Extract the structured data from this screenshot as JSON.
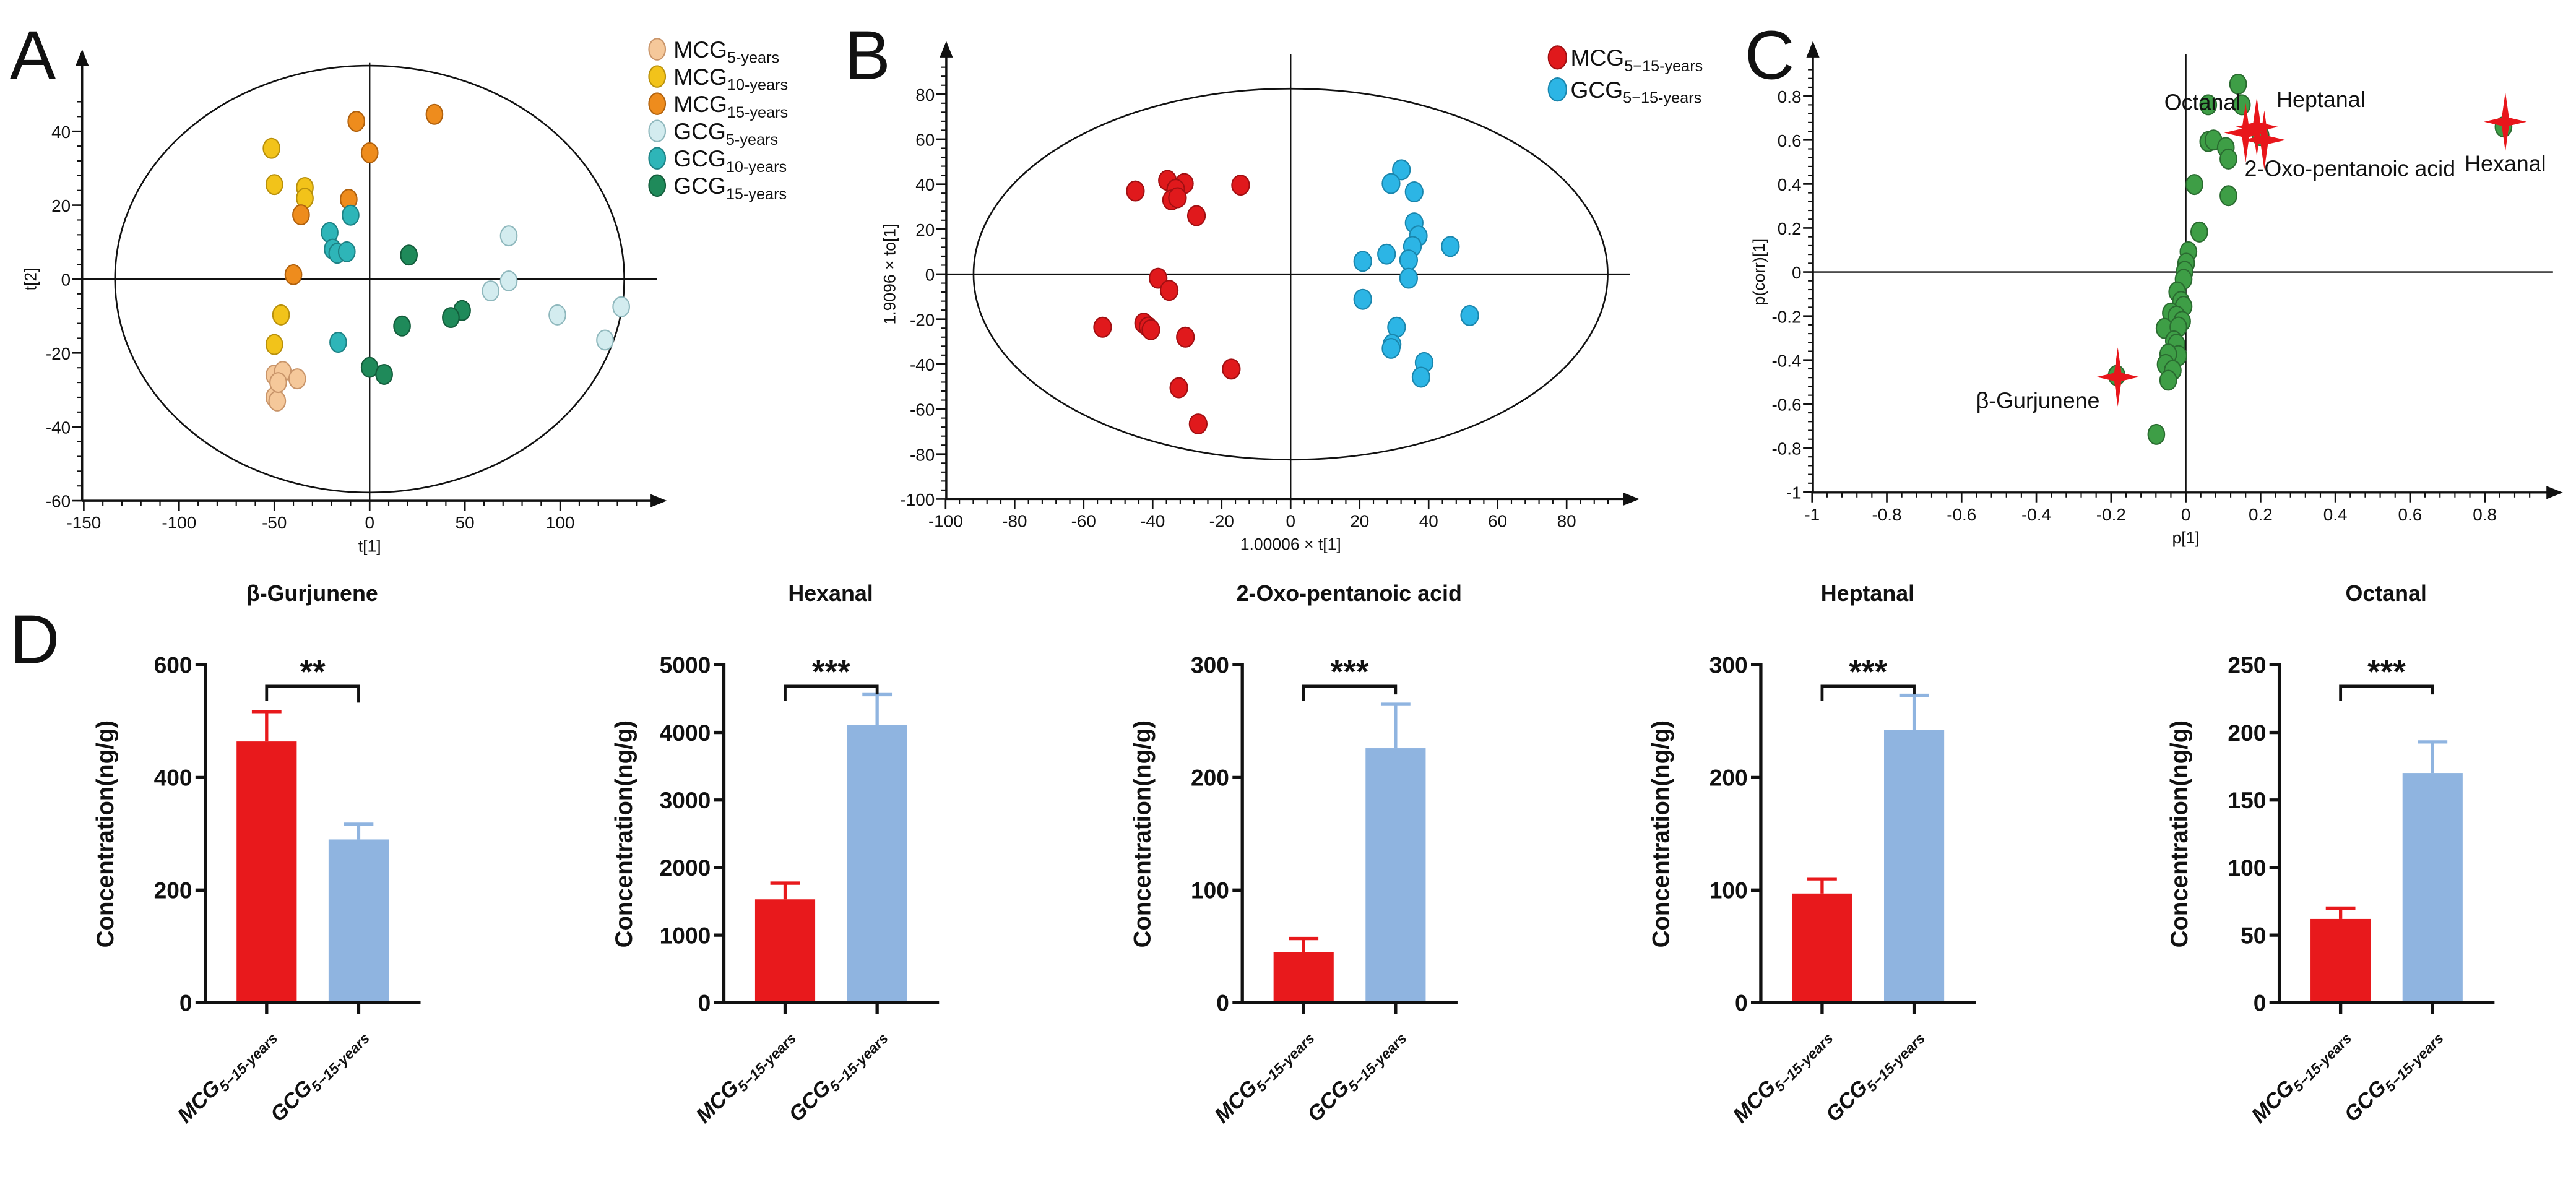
{
  "panel_letters": [
    "A",
    "B",
    "C",
    "D"
  ],
  "chart_data": [
    {
      "id": "A",
      "type": "scatter",
      "xlabel": "t[1]",
      "ylabel": "t[2]",
      "xlim": [
        -150,
        150
      ],
      "ylim": [
        -60,
        50
      ],
      "xticks": [
        -150,
        -100,
        -50,
        0,
        50,
        100
      ],
      "yticks": [
        -60,
        -40,
        -20,
        0,
        20,
        40
      ],
      "legend_position": "top-right",
      "series": [
        {
          "name": "MCG",
          "sub": "5-years",
          "color": "#f5c89a",
          "stroke": "#c9956a",
          "points": [
            [
              -50,
              -26
            ],
            [
              -45.6,
              -25
            ],
            [
              -38,
              -27
            ],
            [
              -50,
              -32
            ],
            [
              -48.5,
              -33
            ],
            [
              -48,
              -28
            ]
          ]
        },
        {
          "name": "MCG",
          "sub": "10-years",
          "color": "#f2c31a",
          "stroke": "#b8900c",
          "points": [
            [
              -51.5,
              35.4
            ],
            [
              -50,
              25.6
            ],
            [
              -34,
              24.8
            ],
            [
              -34,
              21.9
            ],
            [
              -46.5,
              -9.7
            ],
            [
              -50,
              -17.7
            ]
          ]
        },
        {
          "name": "MCG",
          "sub": "15-years",
          "color": "#ee8c1d",
          "stroke": "#b0610e",
          "points": [
            [
              -7,
              42.7
            ],
            [
              34,
              44.6
            ],
            [
              0,
              34.2
            ],
            [
              -11,
              21.6
            ],
            [
              -36,
              17.4
            ],
            [
              -40,
              1.2
            ]
          ]
        },
        {
          "name": "GCG",
          "sub": "5-years",
          "color": "#d3ecef",
          "stroke": "#8fb8bd",
          "points": [
            [
              73,
              11.7
            ],
            [
              73,
              -0.5
            ],
            [
              63.5,
              -3.2
            ],
            [
              98.5,
              -9.7
            ],
            [
              132,
              -7.5
            ],
            [
              123.5,
              -16.5
            ]
          ]
        },
        {
          "name": "GCG",
          "sub": "10-years",
          "color": "#2eb5b8",
          "stroke": "#1d8285",
          "points": [
            [
              -10,
              17.3
            ],
            [
              -21,
              12.6
            ],
            [
              -19.4,
              8.1
            ],
            [
              -17,
              7
            ],
            [
              -12,
              7.4
            ],
            [
              -16.5,
              -17.1
            ]
          ]
        },
        {
          "name": "GCG",
          "sub": "15-years",
          "color": "#1f8a5a",
          "stroke": "#135c3b",
          "points": [
            [
              20.6,
              6.5
            ],
            [
              48.5,
              -8.5
            ],
            [
              42.6,
              -10.4
            ],
            [
              17,
              -12.7
            ],
            [
              0,
              -23.9
            ],
            [
              7.6,
              -25.8
            ]
          ]
        }
      ]
    },
    {
      "id": "B",
      "type": "scatter",
      "xlabel": "1.00006 × t[1]",
      "ylabel": "1.9096 × to[1]",
      "xlim": [
        -100,
        95
      ],
      "ylim": [
        -100,
        95
      ],
      "xticks": [
        -100,
        -80,
        -60,
        -40,
        -20,
        0,
        20,
        40,
        60,
        80
      ],
      "yticks": [
        -100,
        -80,
        -60,
        -40,
        -20,
        0,
        20,
        40,
        60,
        80
      ],
      "legend_position": "top-right",
      "series": [
        {
          "name": "MCG",
          "sub": "5−15-years",
          "color": "#e0191c",
          "stroke": "#a10f12",
          "points": [
            [
              -45,
              37
            ],
            [
              -35.7,
              41.7
            ],
            [
              -30.8,
              40.3
            ],
            [
              -33.3,
              37.7
            ],
            [
              -34.5,
              33
            ],
            [
              -32.8,
              34
            ],
            [
              -27.3,
              26
            ],
            [
              -14.5,
              39.6
            ],
            [
              -38.4,
              -1.8
            ],
            [
              -35.2,
              -7.2
            ],
            [
              -54.5,
              -23.6
            ],
            [
              -42.6,
              -21.8
            ],
            [
              -41.3,
              -23.5
            ],
            [
              -40.5,
              -24.7
            ],
            [
              -30.5,
              -28
            ],
            [
              -17.2,
              -42.2
            ],
            [
              -32.4,
              -50.5
            ],
            [
              -26.8,
              -66.6
            ]
          ]
        },
        {
          "name": "GCG",
          "sub": "5−15-years",
          "color": "#2cb5e5",
          "stroke": "#1a86ad",
          "points": [
            [
              32.1,
              46.4
            ],
            [
              29.1,
              40.3
            ],
            [
              35.8,
              36.6
            ],
            [
              35.8,
              22.8
            ],
            [
              37,
              17
            ],
            [
              35.3,
              12.3
            ],
            [
              46.3,
              12.3
            ],
            [
              27.8,
              8.9
            ],
            [
              34.2,
              6.3
            ],
            [
              20.9,
              5.7
            ],
            [
              34.2,
              -1.8
            ],
            [
              20.9,
              -11.2
            ],
            [
              51.9,
              -18.4
            ],
            [
              30.7,
              -23.6
            ],
            [
              29.4,
              -31.2
            ],
            [
              29.1,
              -33
            ],
            [
              38.7,
              -39.3
            ],
            [
              37.8,
              -45.8
            ]
          ]
        }
      ]
    },
    {
      "id": "C",
      "type": "scatter",
      "xlabel": "p[1]",
      "ylabel": "p(corr)[1]",
      "xlim": [
        -1,
        1
      ],
      "ylim": [
        -1,
        0.95
      ],
      "xticks": [
        -1,
        -0.8,
        -0.6,
        -0.4,
        -0.2,
        0,
        0.2,
        0.4,
        0.6,
        0.8
      ],
      "yticks": [
        -1,
        -0.8,
        -0.6,
        -0.4,
        -0.2,
        0,
        0.2,
        0.4,
        0.6,
        0.8
      ],
      "point_color": "#3e9e46",
      "point_stroke": "#2a6b30",
      "marker_color": "#e8161b",
      "points": [
        [
          0.14,
          0.854
        ],
        [
          0.06,
          0.76
        ],
        [
          0.15,
          0.76
        ],
        [
          0.06,
          0.593
        ],
        [
          0.074,
          0.6
        ],
        [
          0.107,
          0.566
        ],
        [
          0.114,
          0.514
        ],
        [
          0.023,
          0.398
        ],
        [
          0.114,
          0.347
        ],
        [
          0.036,
          0.182
        ],
        [
          0.007,
          0.092
        ],
        [
          0.001,
          0.04
        ],
        [
          -0.003,
          0.003
        ],
        [
          -0.006,
          -0.033
        ],
        [
          -0.023,
          -0.09
        ],
        [
          -0.013,
          -0.134
        ],
        [
          -0.006,
          -0.156
        ],
        [
          -0.04,
          -0.186
        ],
        [
          -0.025,
          -0.2
        ],
        [
          -0.01,
          -0.224
        ],
        [
          -0.057,
          -0.256
        ],
        [
          -0.02,
          -0.25
        ],
        [
          -0.032,
          -0.313
        ],
        [
          -0.025,
          -0.328
        ],
        [
          -0.02,
          -0.38
        ],
        [
          -0.047,
          -0.373
        ],
        [
          -0.054,
          -0.42
        ],
        [
          -0.035,
          -0.447
        ],
        [
          -0.047,
          -0.492
        ],
        [
          -0.079,
          -0.738
        ],
        [
          0.2,
          0.62
        ],
        [
          0.85,
          0.66
        ],
        [
          -0.185,
          -0.47
        ]
      ],
      "highlighted": [
        {
          "name": "Hexanal",
          "x": 0.855,
          "y": 0.683
        },
        {
          "name": "β-Gurjunene",
          "x": -0.182,
          "y": -0.477
        },
        {
          "name": "Octanal",
          "x": 0.16,
          "y": 0.633
        },
        {
          "name": "Heptanal",
          "x": 0.19,
          "y": 0.66
        },
        {
          "name": "2-Oxo-pentanoic acid",
          "x": 0.21,
          "y": 0.6
        }
      ]
    },
    {
      "id": "D",
      "type": "bar",
      "ylabel": "Concentration(ng/g)",
      "categories": [
        {
          "main": "MCG",
          "sub": "5−15-years"
        },
        {
          "main": "GCG",
          "sub": "5−15-years"
        }
      ],
      "colors": [
        "#e8191c",
        "#8fb4e0"
      ],
      "panels": [
        {
          "title": "β-Gurjunene",
          "values": [
            464,
            290
          ],
          "errors": [
            53,
            27
          ],
          "ylim": [
            0,
            600
          ],
          "yticks": [
            0,
            200,
            400,
            600
          ],
          "significance": "**"
        },
        {
          "title": "Hexanal",
          "values": [
            1530,
            4110
          ],
          "errors": [
            240,
            450
          ],
          "ylim": [
            0,
            5000
          ],
          "yticks": [
            0,
            1000,
            2000,
            3000,
            4000,
            5000
          ],
          "significance": "***"
        },
        {
          "title": "2-Oxo-pentanoic acid",
          "values": [
            45,
            226
          ],
          "errors": [
            12,
            39
          ],
          "ylim": [
            0,
            300
          ],
          "yticks": [
            0,
            100,
            200,
            300
          ],
          "significance": "***"
        },
        {
          "title": "Heptanal",
          "values": [
            97,
            242
          ],
          "errors": [
            13,
            31
          ],
          "ylim": [
            0,
            300
          ],
          "yticks": [
            0,
            100,
            200,
            300
          ],
          "significance": "***"
        },
        {
          "title": "Octanal",
          "values": [
            62,
            170
          ],
          "errors": [
            8,
            23
          ],
          "ylim": [
            0,
            250
          ],
          "yticks": [
            0,
            50,
            100,
            150,
            200,
            250
          ],
          "significance": "***"
        }
      ]
    }
  ]
}
